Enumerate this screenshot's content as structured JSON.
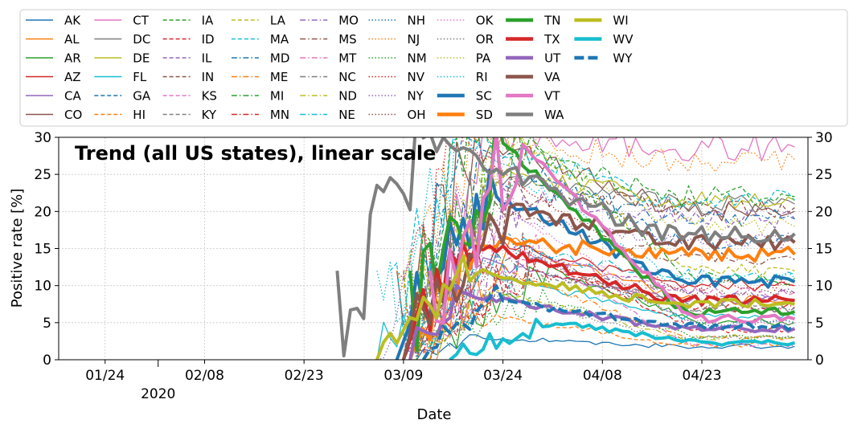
{
  "chart_data": {
    "type": "line",
    "title": "Trend (all US states), linear scale",
    "xlabel": "Date",
    "ylabel": "Positive rate [%]",
    "ylim": [
      0,
      30
    ],
    "xlim": [
      "2020-01-17",
      "2020-05-09"
    ],
    "x_ticks": [
      {
        "date": "2020-01-24",
        "label": "01/24"
      },
      {
        "date": "2020-02-08",
        "label": "02/08"
      },
      {
        "date": "2020-02-23",
        "label": "02/23"
      },
      {
        "date": "2020-03-09",
        "label": "03/09"
      },
      {
        "date": "2020-03-24",
        "label": "03/24"
      },
      {
        "date": "2020-04-08",
        "label": "04/08"
      },
      {
        "date": "2020-04-23",
        "label": "04/23"
      }
    ],
    "year_label": {
      "date": "2020-02-01",
      "label": "2020"
    },
    "y_ticks": [
      0,
      5,
      10,
      15,
      20,
      25,
      30
    ],
    "grid": true,
    "legend_position": "top, above plot, 12 columns",
    "series": [
      {
        "name": "AK",
        "color": "#1f77b4",
        "style": "solid",
        "weight": "thin",
        "start": "2020-03-11",
        "end": "2020-05-07",
        "peak": 3,
        "final": 1.8
      },
      {
        "name": "AL",
        "color": "#ff7f0e",
        "style": "solid",
        "weight": "thin",
        "start": "2020-03-10",
        "end": "2020-05-07",
        "peak": 15,
        "final": 8
      },
      {
        "name": "AR",
        "color": "#2ca02c",
        "style": "solid",
        "weight": "thin",
        "start": "2020-03-12",
        "end": "2020-05-07",
        "peak": 12,
        "final": 5
      },
      {
        "name": "AZ",
        "color": "#d62728",
        "style": "solid",
        "weight": "thin",
        "start": "2020-03-11",
        "end": "2020-05-07",
        "peak": 16,
        "final": 10
      },
      {
        "name": "CA",
        "color": "#9467bd",
        "style": "solid",
        "weight": "thin",
        "start": "2020-03-09",
        "end": "2020-05-07",
        "peak": 13,
        "final": 8
      },
      {
        "name": "CO",
        "color": "#8c564b",
        "style": "solid",
        "weight": "thin",
        "start": "2020-03-08",
        "end": "2020-05-07",
        "peak": 30,
        "final": 20
      },
      {
        "name": "CT",
        "color": "#e377c2",
        "style": "solid",
        "weight": "thin",
        "start": "2020-03-13",
        "end": "2020-05-07",
        "peak": 30,
        "final": 28.7
      },
      {
        "name": "DC",
        "color": "#7f7f7f",
        "style": "solid",
        "weight": "thin",
        "start": "2020-03-10",
        "end": "2020-05-07",
        "peak": 25,
        "final": 21
      },
      {
        "name": "DE",
        "color": "#bcbd22",
        "style": "solid",
        "weight": "thin",
        "start": "2020-03-14",
        "end": "2020-05-07",
        "peak": 25,
        "final": 21.5
      },
      {
        "name": "FL",
        "color": "#17becf",
        "style": "solid",
        "weight": "thin",
        "start": "2020-03-05",
        "end": "2020-05-07",
        "peak": 12,
        "final": 6
      },
      {
        "name": "GA",
        "color": "#1f77b4",
        "style": "dashed",
        "weight": "thin",
        "start": "2020-03-10",
        "end": "2020-05-07",
        "peak": 30,
        "final": 16
      },
      {
        "name": "HI",
        "color": "#ff7f0e",
        "style": "dashed",
        "weight": "thin",
        "start": "2020-03-10",
        "end": "2020-05-07",
        "peak": 6,
        "final": 2
      },
      {
        "name": "IA",
        "color": "#2ca02c",
        "style": "dashed",
        "weight": "thin",
        "start": "2020-03-09",
        "end": "2020-05-07",
        "peak": 30,
        "final": 22
      },
      {
        "name": "ID",
        "color": "#d62728",
        "style": "dashed",
        "weight": "thin",
        "start": "2020-03-13",
        "end": "2020-05-07",
        "peak": 14,
        "final": 4
      },
      {
        "name": "IL",
        "color": "#9467bd",
        "style": "dashed",
        "weight": "thin",
        "start": "2020-03-09",
        "end": "2020-05-07",
        "peak": 22,
        "final": 19
      },
      {
        "name": "IN",
        "color": "#8c564b",
        "style": "dashed",
        "weight": "thin",
        "start": "2020-03-10",
        "end": "2020-05-07",
        "peak": 22,
        "final": 20.5
      },
      {
        "name": "KS",
        "color": "#e377c2",
        "style": "dashed",
        "weight": "thin",
        "start": "2020-03-12",
        "end": "2020-05-07",
        "peak": 14,
        "final": 9
      },
      {
        "name": "KY",
        "color": "#7f7f7f",
        "style": "dashed",
        "weight": "thin",
        "start": "2020-03-11",
        "end": "2020-05-07",
        "peak": 12,
        "final": 7
      },
      {
        "name": "LA",
        "color": "#bcbd22",
        "style": "dashed",
        "weight": "thin",
        "start": "2020-03-10",
        "end": "2020-05-07",
        "peak": 30,
        "final": 12
      },
      {
        "name": "MA",
        "color": "#17becf",
        "style": "dashed",
        "weight": "thin",
        "start": "2020-03-07",
        "end": "2020-05-07",
        "peak": 30,
        "final": 21.5
      },
      {
        "name": "MD",
        "color": "#1f77b4",
        "style": "dashdot",
        "weight": "thin",
        "start": "2020-03-09",
        "end": "2020-05-07",
        "peak": 25,
        "final": 19
      },
      {
        "name": "ME",
        "color": "#ff7f0e",
        "style": "dashdot",
        "weight": "thin",
        "start": "2020-03-13",
        "end": "2020-05-07",
        "peak": 12,
        "final": 3
      },
      {
        "name": "MI",
        "color": "#2ca02c",
        "style": "dashdot",
        "weight": "thin",
        "start": "2020-03-11",
        "end": "2020-05-07",
        "peak": 30,
        "final": 11
      },
      {
        "name": "MN",
        "color": "#d62728",
        "style": "dashdot",
        "weight": "thin",
        "start": "2020-03-09",
        "end": "2020-05-07",
        "peak": 12,
        "final": 7
      },
      {
        "name": "MO",
        "color": "#9467bd",
        "style": "dashdot",
        "weight": "thin",
        "start": "2020-03-10",
        "end": "2020-05-07",
        "peak": 14,
        "final": 9
      },
      {
        "name": "MS",
        "color": "#8c564b",
        "style": "dashdot",
        "weight": "thin",
        "start": "2020-03-12",
        "end": "2020-05-07",
        "peak": 20,
        "final": 13.5
      },
      {
        "name": "MT",
        "color": "#e377c2",
        "style": "dashdot",
        "weight": "thin",
        "start": "2020-03-13",
        "end": "2020-05-07",
        "peak": 16,
        "final": 2
      },
      {
        "name": "NC",
        "color": "#7f7f7f",
        "style": "dashdot",
        "weight": "thin",
        "start": "2020-03-09",
        "end": "2020-05-07",
        "peak": 14,
        "final": 7
      },
      {
        "name": "ND",
        "color": "#bcbd22",
        "style": "dashdot",
        "weight": "thin",
        "start": "2020-03-11",
        "end": "2020-05-07",
        "peak": 9,
        "final": 3
      },
      {
        "name": "NE",
        "color": "#17becf",
        "style": "dashdot",
        "weight": "thin",
        "start": "2020-03-09",
        "end": "2020-05-07",
        "peak": 14,
        "final": 11.5
      },
      {
        "name": "NH",
        "color": "#1f77b4",
        "style": "dotted",
        "weight": "thin",
        "start": "2020-03-09",
        "end": "2020-05-07",
        "peak": 16,
        "final": 5
      },
      {
        "name": "NJ",
        "color": "#ff7f0e",
        "style": "dotted",
        "weight": "thin",
        "start": "2020-03-09",
        "end": "2020-05-07",
        "peak": 30,
        "final": 27
      },
      {
        "name": "NM",
        "color": "#2ca02c",
        "style": "dotted",
        "weight": "thin",
        "start": "2020-03-11",
        "end": "2020-05-07",
        "peak": 8,
        "final": 3
      },
      {
        "name": "NV",
        "color": "#d62728",
        "style": "dotted",
        "weight": "thin",
        "start": "2020-03-08",
        "end": "2020-05-07",
        "peak": 30,
        "final": 10
      },
      {
        "name": "NY",
        "color": "#9467bd",
        "style": "dotted",
        "weight": "thin",
        "start": "2020-03-05",
        "end": "2020-05-07",
        "peak": 20,
        "final": 16
      },
      {
        "name": "OH",
        "color": "#8c564b",
        "style": "dotted",
        "weight": "thin",
        "start": "2020-03-08",
        "end": "2020-05-07",
        "peak": 12,
        "final": 9
      },
      {
        "name": "OK",
        "color": "#e377c2",
        "style": "dotted",
        "weight": "thin",
        "start": "2020-03-10",
        "end": "2020-05-07",
        "peak": 20,
        "final": 5
      },
      {
        "name": "OR",
        "color": "#7f7f7f",
        "style": "dotted",
        "weight": "thin",
        "start": "2020-03-09",
        "end": "2020-05-07",
        "peak": 10,
        "final": 3
      },
      {
        "name": "PA",
        "color": "#bcbd22",
        "style": "dotted",
        "weight": "thin",
        "start": "2020-03-08",
        "end": "2020-05-07",
        "peak": 30,
        "final": 18
      },
      {
        "name": "RI",
        "color": "#17becf",
        "style": "dotted",
        "weight": "thin",
        "start": "2020-03-05",
        "end": "2020-05-07",
        "peak": 30,
        "final": 11
      },
      {
        "name": "SC",
        "color": "#1f77b4",
        "style": "solid",
        "weight": "thick",
        "start": "2020-03-08",
        "end": "2020-05-07",
        "peak": 22.5,
        "final": 10.5
      },
      {
        "name": "SD",
        "color": "#ff7f0e",
        "style": "solid",
        "weight": "thick",
        "start": "2020-03-10",
        "end": "2020-05-07",
        "peak": 16,
        "final": 14.2
      },
      {
        "name": "TN",
        "color": "#2ca02c",
        "style": "solid",
        "weight": "thick",
        "start": "2020-03-10",
        "end": "2020-05-07",
        "peak": 30,
        "final": 6.5
      },
      {
        "name": "TX",
        "color": "#d62728",
        "style": "solid",
        "weight": "thick",
        "start": "2020-03-09",
        "end": "2020-05-07",
        "peak": 16,
        "final": 8
      },
      {
        "name": "UT",
        "color": "#9467bd",
        "style": "solid",
        "weight": "thick",
        "start": "2020-03-10",
        "end": "2020-05-07",
        "peak": 9,
        "final": 4.2
      },
      {
        "name": "VA",
        "color": "#8c564b",
        "style": "solid",
        "weight": "thick",
        "start": "2020-03-09",
        "end": "2020-05-07",
        "peak": 20.5,
        "final": 15.8
      },
      {
        "name": "VT",
        "color": "#e377c2",
        "style": "solid",
        "weight": "thick",
        "start": "2020-03-13",
        "end": "2020-05-07",
        "peak": 30,
        "final": 5.5
      },
      {
        "name": "WA",
        "color": "#7f7f7f",
        "style": "solid",
        "weight": "thick",
        "start": "2020-02-28",
        "end": "2020-05-07",
        "peak": 30,
        "final": 17
      },
      {
        "name": "WI",
        "color": "#bcbd22",
        "style": "solid",
        "weight": "thick",
        "start": "2020-03-05",
        "end": "2020-05-07",
        "peak": 12,
        "final": 7.5
      },
      {
        "name": "WV",
        "color": "#17becf",
        "style": "solid",
        "weight": "thick",
        "start": "2020-03-16",
        "end": "2020-05-07",
        "peak": 5,
        "final": 2.3
      },
      {
        "name": "WY",
        "color": "#1f77b4",
        "style": "dashed",
        "weight": "thick",
        "start": "2020-03-12",
        "end": "2020-05-07",
        "peak": 8,
        "final": 4.5
      }
    ]
  }
}
